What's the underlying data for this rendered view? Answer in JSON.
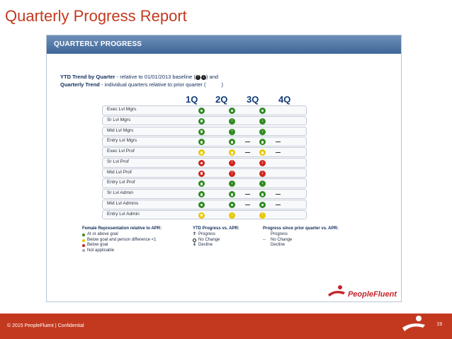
{
  "slide": {
    "title": "Quarterly Progress Report",
    "footer": "© 2015 PeopleFluent | Confidential",
    "page_number": "19"
  },
  "panel": {
    "header": "QUARTERLY PROGRESS",
    "subtitle_line1_bold": "YTD Trend by Quarter",
    "subtitle_line1_rest": " - relative to 01/01/2013 baseline (",
    "subtitle_line1_end": ") and",
    "subtitle_line2_bold": "Quarterly Trend",
    "subtitle_line2_rest": " - individual quarters relative to prior quarter (",
    "subtitle_line2_end": ")",
    "quarters": [
      "1Q",
      "2Q",
      "3Q",
      "4Q"
    ],
    "rows": [
      {
        "label": "Exec Lvl Mgrs",
        "cells": [
          "green-circle",
          "green-circle",
          "green-circle",
          "none"
        ]
      },
      {
        "label": "Sr Lvl Mgrs",
        "cells": [
          "green-circle",
          "green-up",
          "green-down",
          "none"
        ]
      },
      {
        "label": "Mid Lvl Mgrs",
        "cells": [
          "green-circle",
          "green-up",
          "green-down",
          "none"
        ]
      },
      {
        "label": "Entry Lvl Mgrs",
        "cells": [
          "green-circle",
          "green-circle",
          "dash",
          "green-circle",
          "dash"
        ]
      },
      {
        "label": "Exec Lvl Prof",
        "cells": [
          "yellow-circle",
          "yellow-circle",
          "dash",
          "yellow-circle",
          "dash"
        ]
      },
      {
        "label": "Sr Lvl Prof",
        "cells": [
          "red-circle",
          "red-up",
          "red-down",
          "none"
        ]
      },
      {
        "label": "Mid Lvl Prof",
        "cells": [
          "red-circle",
          "red-up",
          "red-down",
          "none"
        ]
      },
      {
        "label": "Entry Lvl Prof",
        "cells": [
          "green-circle",
          "green-down",
          "green-down",
          "none"
        ]
      },
      {
        "label": "Sr Lvl  Admin",
        "cells": [
          "green-circle",
          "green-circle",
          "dash",
          "green-circle",
          "dash"
        ]
      },
      {
        "label": "Mid Lvl Admins",
        "cells": [
          "green-circle",
          "green-circle",
          "dash",
          "green-circle",
          "dash"
        ]
      },
      {
        "label": "Entry Lvl Admin",
        "cells": [
          "yellow-circle",
          "yellow-down",
          "yellow-up",
          "none"
        ]
      }
    ],
    "legend_female": {
      "heading": "Female Representation relative to APR:",
      "items": [
        {
          "color": "#3a8a1f",
          "label": "At or above goal"
        },
        {
          "color": "#e8c400",
          "label": "Below goal and person difference <1"
        },
        {
          "color": "#c8241d",
          "label": "Below goal"
        },
        {
          "color": "#a9a9a9",
          "label": "Not applicable"
        }
      ]
    },
    "legend_ytd": {
      "heading": "YTD Progress vs. APR:",
      "items": [
        {
          "icon": "up-arrow-icon",
          "label": "Progress"
        },
        {
          "icon": "circle-icon",
          "label": "No Change"
        },
        {
          "icon": "down-arrow-icon",
          "label": "Decline"
        }
      ]
    },
    "legend_prior": {
      "heading": "Progress since prior quarter vs. APR:",
      "items": [
        {
          "symbol": "",
          "label": "Progress"
        },
        {
          "symbol": "--",
          "label": "No Change"
        },
        {
          "symbol": "",
          "label": "Decline"
        }
      ]
    },
    "brand": "PeopleFluent"
  }
}
